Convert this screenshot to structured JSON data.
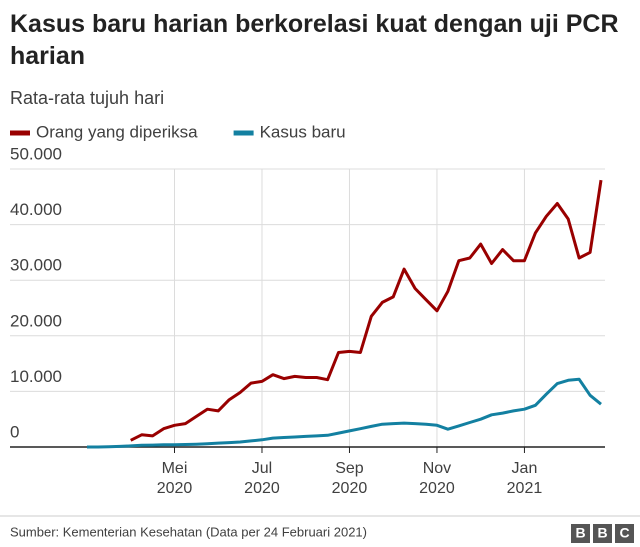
{
  "chart_data": {
    "type": "line",
    "title": "Kasus baru harian berkorelasi kuat dengan uji PCR harian",
    "subtitle": "Rata-rata tujuh hari",
    "categories": [
      null,
      null,
      null,
      null,
      null,
      null,
      null,
      null,
      "Mei 2020",
      null,
      null,
      null,
      null,
      null,
      null,
      null,
      "Jul 2020",
      null,
      null,
      null,
      null,
      null,
      null,
      null,
      "Sep 2020",
      null,
      null,
      null,
      null,
      null,
      null,
      null,
      "Nov 2020",
      null,
      null,
      null,
      null,
      null,
      null,
      null,
      "Jan 2021",
      null,
      null,
      null,
      null,
      null,
      null,
      null
    ],
    "series": [
      {
        "name": "Orang yang diperiksa",
        "color": "#990000",
        "values": [
          null,
          null,
          null,
          null,
          1200,
          2200,
          2000,
          3300,
          3900,
          4200,
          5500,
          6800,
          6500,
          8500,
          9800,
          11500,
          11800,
          13000,
          12300,
          12700,
          12500,
          12500,
          12100,
          17000,
          17200,
          17000,
          23500,
          26000,
          27000,
          32000,
          28500,
          26500,
          24500,
          28000,
          33500,
          34000,
          36500,
          33000,
          35500,
          33500,
          33500,
          38500,
          41500,
          43800,
          41000,
          34000,
          35000,
          48000
        ]
      },
      {
        "name": "Kasus baru",
        "color": "#1380a1",
        "values": [
          0,
          0,
          50,
          100,
          200,
          300,
          350,
          400,
          400,
          450,
          500,
          600,
          700,
          800,
          900,
          1100,
          1300,
          1600,
          1700,
          1800,
          1900,
          2000,
          2100,
          2500,
          2900,
          3300,
          3700,
          4100,
          4200,
          4300,
          4200,
          4100,
          3900,
          3200,
          3800,
          4400,
          5000,
          5800,
          6100,
          6500,
          6800,
          7500,
          9500,
          11400,
          12000,
          12200,
          9300,
          7700
        ]
      }
    ],
    "ylim": [
      0,
      50000
    ],
    "yticks": [
      0,
      {
        "value": 10000,
        "label": "10.000"
      },
      {
        "value": 20000,
        "label": "20.000"
      },
      {
        "value": 30000,
        "label": "30.000"
      },
      {
        "value": 40000,
        "label": "40.000"
      },
      {
        "value": 50000,
        "label": "50.000"
      }
    ],
    "grid": true,
    "source": "Sumber: Kementerian Kesehatan (Data per 24 Februari 2021)",
    "logo": "BBC"
  }
}
